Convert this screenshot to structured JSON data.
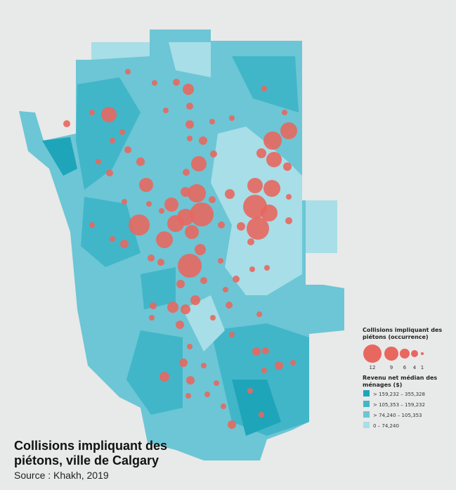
{
  "map": {
    "title_lines": [
      "Collisions impliquant des",
      "piétons, ville de Calgary"
    ],
    "source": "Source : Khakh, 2019",
    "collisions": {
      "title_lines": [
        "Collisions impliquant des",
        "piétons (occurrence)"
      ],
      "color": "#e8675f",
      "legend_sizes": [
        12,
        9,
        6,
        4,
        1
      ],
      "values": [
        3,
        3,
        7,
        4,
        3,
        10,
        3,
        3,
        4,
        4,
        3,
        3,
        3,
        5,
        3,
        11,
        12,
        5,
        3,
        3,
        4,
        6,
        10,
        4,
        5,
        10,
        5,
        3,
        4,
        4,
        9,
        10,
        11,
        12,
        6,
        6,
        4,
        3,
        3,
        9,
        16,
        3,
        11,
        16,
        11,
        11,
        14,
        3,
        15,
        4,
        5,
        3,
        4,
        9,
        11,
        5,
        4,
        3,
        7,
        4,
        4,
        16,
        3,
        3,
        3,
        4,
        5,
        4,
        3,
        6,
        4,
        7,
        6,
        4,
        3,
        3,
        3,
        5,
        3,
        3,
        5,
        4,
        5,
        5,
        3,
        3,
        3,
        6,
        5,
        3,
        3,
        3,
        3,
        3,
        3,
        5
      ]
    },
    "income": {
      "title_lines": [
        "Revenu net médian des",
        "ménages ($)"
      ],
      "classes": [
        {
          "label": "> 159,232 – 355,328",
          "color": "#1fa5ba"
        },
        {
          "label": "> 105,353 – 159,232",
          "color": "#41b6c8"
        },
        {
          "label": "> 74,240 – 105,353",
          "color": "#6cc6d5"
        },
        {
          "label": "0 – 74,240",
          "color": "#a7dee7"
        }
      ]
    }
  }
}
